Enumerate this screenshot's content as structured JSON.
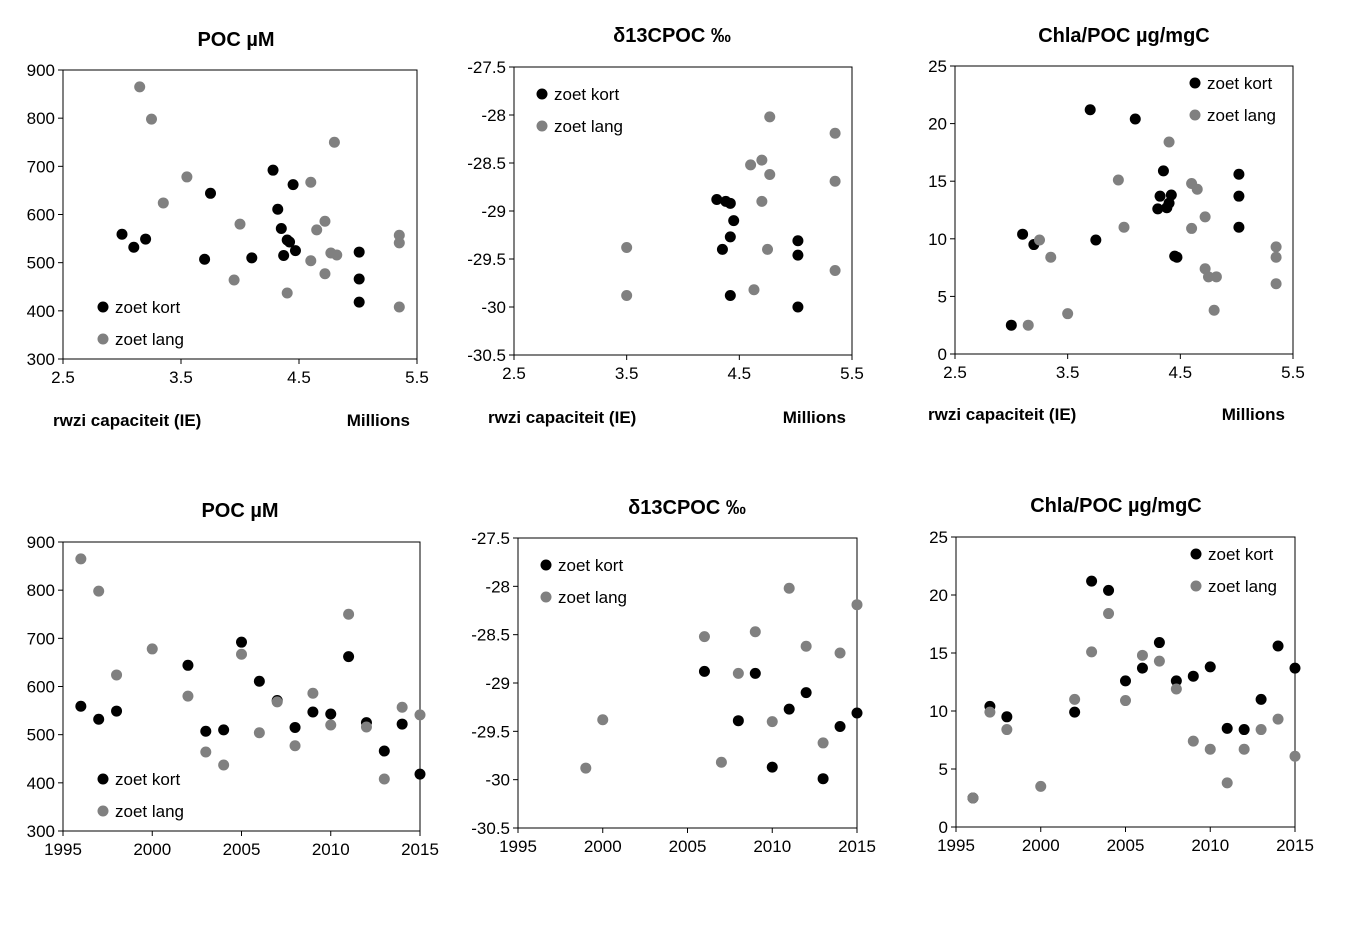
{
  "colors": {
    "zoet_kort": "#000000",
    "zoet_lang": "#808080",
    "axis": "#000000",
    "background": "#ffffff"
  },
  "chart_data": [
    {
      "type": "scatter",
      "title": "POC µM",
      "xlabel": "rwzi capaciteit (IE)",
      "xunit": "Millions",
      "xlim": [
        2.5,
        5.5
      ],
      "xticks": [
        "2.5",
        "3.5",
        "4.5",
        "5.5"
      ],
      "ylim": [
        300,
        900
      ],
      "yticks": [
        "300",
        "400",
        "500",
        "600",
        "700",
        "800",
        "900"
      ],
      "legend": "bottom-left",
      "series": [
        {
          "name": "zoet kort",
          "points": [
            [
              3.0,
              559
            ],
            [
              3.1,
              532
            ],
            [
              3.2,
              549
            ],
            [
              3.7,
              507
            ],
            [
              3.75,
              644
            ],
            [
              4.1,
              510
            ],
            [
              4.28,
              692
            ],
            [
              4.32,
              611
            ],
            [
              4.35,
              571
            ],
            [
              4.37,
              515
            ],
            [
              4.4,
              547
            ],
            [
              4.42,
              543
            ],
            [
              4.45,
              662
            ],
            [
              4.47,
              525
            ],
            [
              5.01,
              522
            ],
            [
              5.01,
              466
            ],
            [
              5.01,
              418
            ]
          ]
        },
        {
          "name": "zoet lang",
          "points": [
            [
              3.15,
              865
            ],
            [
              3.25,
              798
            ],
            [
              3.35,
              624
            ],
            [
              3.55,
              678
            ],
            [
              3.95,
              464
            ],
            [
              4.0,
              580
            ],
            [
              4.4,
              437
            ],
            [
              4.6,
              667
            ],
            [
              4.6,
              504
            ],
            [
              4.65,
              568
            ],
            [
              4.72,
              586
            ],
            [
              4.72,
              477
            ],
            [
              4.77,
              520
            ],
            [
              4.8,
              750
            ],
            [
              4.82,
              516
            ],
            [
              5.35,
              557
            ],
            [
              5.35,
              541
            ],
            [
              5.35,
              408
            ]
          ]
        }
      ]
    },
    {
      "type": "scatter",
      "title": "δ13CPOC ‰",
      "xlabel": "rwzi capaciteit (IE)",
      "xunit": "Millions",
      "xlim": [
        2.5,
        5.5
      ],
      "xticks": [
        "2.5",
        "3.5",
        "4.5",
        "5.5"
      ],
      "ylim": [
        -30.5,
        -27.5
      ],
      "yticks": [
        "-30.5",
        "-30",
        "-29.5",
        "-29",
        "-28.5",
        "-28",
        "-27.5"
      ],
      "legend": "top-left",
      "series": [
        {
          "name": "zoet kort",
          "points": [
            [
              4.3,
              -28.88
            ],
            [
              4.38,
              -28.9
            ],
            [
              4.35,
              -29.4
            ],
            [
              4.42,
              -28.92
            ],
            [
              4.45,
              -29.1
            ],
            [
              4.42,
              -29.27
            ],
            [
              4.42,
              -29.88
            ],
            [
              5.02,
              -29.31
            ],
            [
              5.02,
              -29.46
            ],
            [
              5.02,
              -30.0
            ]
          ]
        },
        {
          "name": "zoet lang",
          "points": [
            [
              3.5,
              -29.38
            ],
            [
              3.5,
              -29.88
            ],
            [
              4.6,
              -28.52
            ],
            [
              4.7,
              -28.47
            ],
            [
              4.7,
              -28.9
            ],
            [
              4.77,
              -28.02
            ],
            [
              4.77,
              -28.62
            ],
            [
              4.75,
              -29.4
            ],
            [
              4.63,
              -29.82
            ],
            [
              5.35,
              -28.19
            ],
            [
              5.35,
              -28.69
            ],
            [
              5.35,
              -29.62
            ]
          ]
        }
      ]
    },
    {
      "type": "scatter",
      "title": "Chla/POC µg/mgC",
      "xlabel": "rwzi capaciteit (IE)",
      "xunit": "Millions",
      "xlim": [
        2.5,
        5.5
      ],
      "xticks": [
        "2.5",
        "3.5",
        "4.5",
        "5.5"
      ],
      "ylim": [
        0,
        25
      ],
      "yticks": [
        "0",
        "5",
        "10",
        "15",
        "20",
        "25"
      ],
      "legend": "top-right",
      "series": [
        {
          "name": "zoet kort",
          "points": [
            [
              3.0,
              2.5
            ],
            [
              3.1,
              10.4
            ],
            [
              3.2,
              9.5
            ],
            [
              3.7,
              21.2
            ],
            [
              3.75,
              9.9
            ],
            [
              4.1,
              20.4
            ],
            [
              4.3,
              12.6
            ],
            [
              4.32,
              13.7
            ],
            [
              4.35,
              15.9
            ],
            [
              4.38,
              12.7
            ],
            [
              4.4,
              13.1
            ],
            [
              4.42,
              13.8
            ],
            [
              4.45,
              8.5
            ],
            [
              4.47,
              8.4
            ],
            [
              5.02,
              15.6
            ],
            [
              5.02,
              13.7
            ],
            [
              5.02,
              11.0
            ]
          ]
        },
        {
          "name": "zoet lang",
          "points": [
            [
              3.15,
              2.5
            ],
            [
              3.25,
              9.9
            ],
            [
              3.35,
              8.4
            ],
            [
              3.5,
              3.5
            ],
            [
              3.95,
              15.1
            ],
            [
              4.0,
              11.0
            ],
            [
              4.4,
              18.4
            ],
            [
              4.6,
              14.8
            ],
            [
              4.6,
              10.9
            ],
            [
              4.65,
              14.3
            ],
            [
              4.72,
              11.9
            ],
            [
              4.72,
              7.4
            ],
            [
              4.75,
              6.7
            ],
            [
              4.8,
              3.8
            ],
            [
              4.82,
              6.7
            ],
            [
              5.35,
              9.3
            ],
            [
              5.35,
              8.4
            ],
            [
              5.35,
              6.1
            ]
          ]
        }
      ]
    },
    {
      "type": "scatter",
      "title": "POC µM",
      "xlabel": "",
      "xunit": "",
      "xlim": [
        1995,
        2015
      ],
      "xticks": [
        "1995",
        "2000",
        "2005",
        "2010",
        "2015"
      ],
      "ylim": [
        300,
        900
      ],
      "yticks": [
        "300",
        "400",
        "500",
        "600",
        "700",
        "800",
        "900"
      ],
      "legend": "bottom-left",
      "series": [
        {
          "name": "zoet kort",
          "points": [
            [
              1996,
              559
            ],
            [
              1997,
              532
            ],
            [
              1998,
              549
            ],
            [
              2002,
              644
            ],
            [
              2003,
              507
            ],
            [
              2004,
              510
            ],
            [
              2005,
              692
            ],
            [
              2006,
              611
            ],
            [
              2007,
              571
            ],
            [
              2008,
              515
            ],
            [
              2009,
              547
            ],
            [
              2010,
              543
            ],
            [
              2011,
              662
            ],
            [
              2012,
              525
            ],
            [
              2013,
              466
            ],
            [
              2014,
              522
            ],
            [
              2015,
              418
            ]
          ]
        },
        {
          "name": "zoet lang",
          "points": [
            [
              1996,
              865
            ],
            [
              1997,
              798
            ],
            [
              1998,
              624
            ],
            [
              2000,
              678
            ],
            [
              2002,
              580
            ],
            [
              2003,
              464
            ],
            [
              2004,
              437
            ],
            [
              2005,
              667
            ],
            [
              2006,
              504
            ],
            [
              2007,
              568
            ],
            [
              2008,
              477
            ],
            [
              2009,
              586
            ],
            [
              2010,
              520
            ],
            [
              2011,
              750
            ],
            [
              2012,
              516
            ],
            [
              2013,
              408
            ],
            [
              2014,
              557
            ],
            [
              2015,
              541
            ]
          ]
        }
      ]
    },
    {
      "type": "scatter",
      "title": "δ13CPOC ‰",
      "xlabel": "",
      "xunit": "",
      "xlim": [
        1995,
        2015
      ],
      "xticks": [
        "1995",
        "2000",
        "2005",
        "2010",
        "2015"
      ],
      "ylim": [
        -30.5,
        -27.5
      ],
      "yticks": [
        "-30.5",
        "-30",
        "-29.5",
        "-29",
        "-28.5",
        "-28",
        "-27.5"
      ],
      "legend": "top-left",
      "series": [
        {
          "name": "zoet kort",
          "points": [
            [
              2006,
              -28.88
            ],
            [
              2008,
              -29.39
            ],
            [
              2009,
              -28.9
            ],
            [
              2010,
              -29.87
            ],
            [
              2011,
              -29.27
            ],
            [
              2012,
              -29.1
            ],
            [
              2013,
              -29.99
            ],
            [
              2014,
              -29.45
            ],
            [
              2015,
              -29.31
            ]
          ]
        },
        {
          "name": "zoet lang",
          "points": [
            [
              1999,
              -29.88
            ],
            [
              2000,
              -29.38
            ],
            [
              2006,
              -28.52
            ],
            [
              2007,
              -29.82
            ],
            [
              2008,
              -28.9
            ],
            [
              2009,
              -28.47
            ],
            [
              2010,
              -29.4
            ],
            [
              2011,
              -28.02
            ],
            [
              2012,
              -28.62
            ],
            [
              2013,
              -29.62
            ],
            [
              2014,
              -28.69
            ],
            [
              2015,
              -28.19
            ]
          ]
        }
      ]
    },
    {
      "type": "scatter",
      "title": "Chla/POC µg/mgC",
      "xlabel": "",
      "xunit": "",
      "xlim": [
        1995,
        2015
      ],
      "xticks": [
        "1995",
        "2000",
        "2005",
        "2010",
        "2015"
      ],
      "ylim": [
        0,
        25
      ],
      "yticks": [
        "0",
        "5",
        "10",
        "15",
        "20",
        "25"
      ],
      "legend": "top-right",
      "series": [
        {
          "name": "zoet kort",
          "points": [
            [
              1996,
              2.5
            ],
            [
              1997,
              10.4
            ],
            [
              1998,
              9.5
            ],
            [
              2002,
              9.9
            ],
            [
              2003,
              21.2
            ],
            [
              2004,
              20.4
            ],
            [
              2005,
              12.6
            ],
            [
              2006,
              13.7
            ],
            [
              2007,
              15.9
            ],
            [
              2008,
              12.6
            ],
            [
              2009,
              13.0
            ],
            [
              2010,
              13.8
            ],
            [
              2011,
              8.5
            ],
            [
              2012,
              8.4
            ],
            [
              2013,
              11.0
            ],
            [
              2014,
              15.6
            ],
            [
              2015,
              13.7
            ]
          ]
        },
        {
          "name": "zoet lang",
          "points": [
            [
              1996,
              2.5
            ],
            [
              1997,
              9.9
            ],
            [
              1998,
              8.4
            ],
            [
              2000,
              3.5
            ],
            [
              2002,
              11.0
            ],
            [
              2003,
              15.1
            ],
            [
              2004,
              18.4
            ],
            [
              2005,
              10.9
            ],
            [
              2006,
              14.8
            ],
            [
              2007,
              14.3
            ],
            [
              2008,
              11.9
            ],
            [
              2009,
              7.4
            ],
            [
              2010,
              6.7
            ],
            [
              2011,
              3.8
            ],
            [
              2012,
              6.7
            ],
            [
              2013,
              8.4
            ],
            [
              2014,
              9.3
            ],
            [
              2015,
              6.1
            ]
          ]
        }
      ]
    }
  ]
}
